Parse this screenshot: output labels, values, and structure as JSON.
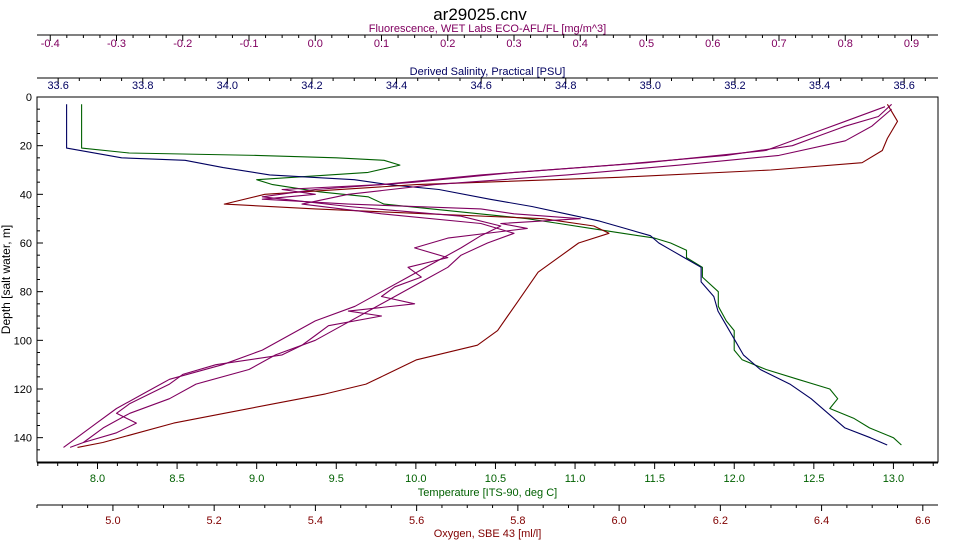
{
  "chart_data": {
    "type": "line",
    "title": "ar29025.cnv",
    "y_axis": {
      "label": "Depth [salt water, m]",
      "range": [
        0,
        150
      ],
      "inverted": true,
      "ticks": [
        0,
        20,
        40,
        60,
        80,
        100,
        120,
        140
      ]
    },
    "x_axes": [
      {
        "id": "fluorescence",
        "label": "Fluorescence, WET Labs ECO-AFL/FL [mg/m^3]",
        "position": "top-outer",
        "color": "#800060",
        "range": [
          -0.42,
          0.94
        ],
        "ticks": [
          -0.4,
          -0.3,
          -0.2,
          -0.1,
          0.0,
          0.1,
          0.2,
          0.3,
          0.4,
          0.5,
          0.6,
          0.7,
          0.8,
          0.9
        ],
        "tick_labels": [
          "-0.4",
          "-0.3",
          "-0.2",
          "-0.1",
          "0.0",
          "0.1",
          "0.2",
          "0.3",
          "0.4",
          "0.5",
          "0.6",
          "0.7",
          "0.8",
          "0.9"
        ]
      },
      {
        "id": "salinity",
        "label": "Derived Salinity, Practical [PSU]",
        "position": "top-inner",
        "color": "#000060",
        "range": [
          33.55,
          35.68
        ],
        "ticks": [
          33.6,
          33.8,
          34.0,
          34.2,
          34.4,
          34.6,
          34.8,
          35.0,
          35.2,
          35.4,
          35.6
        ],
        "tick_labels": [
          "33.6",
          "33.8",
          "34.0",
          "34.2",
          "34.4",
          "34.6",
          "34.8",
          "35.0",
          "35.2",
          "35.4",
          "35.6"
        ]
      },
      {
        "id": "temperature",
        "label": "Temperature [ITS-90, deg C]",
        "position": "bottom-inner",
        "color": "#006000",
        "range": [
          7.62,
          13.28
        ],
        "ticks": [
          8.0,
          8.5,
          9.0,
          9.5,
          10.0,
          10.5,
          11.0,
          11.5,
          12.0,
          12.5,
          13.0
        ],
        "tick_labels": [
          "8.0",
          "8.5",
          "9.0",
          "9.5",
          "10.0",
          "10.5",
          "11.0",
          "11.5",
          "12.0",
          "12.5",
          "13.0"
        ]
      },
      {
        "id": "oxygen",
        "label": "Oxygen, SBE 43 [ml/l]",
        "position": "bottom-outer",
        "color": "#800000",
        "range": [
          4.85,
          6.63
        ],
        "ticks": [
          5.0,
          5.2,
          5.4,
          5.6,
          5.8,
          6.0,
          6.2,
          6.4,
          6.6
        ],
        "tick_labels": [
          "5.0",
          "5.2",
          "5.4",
          "5.6",
          "5.8",
          "6.0",
          "6.2",
          "6.4",
          "6.6"
        ]
      }
    ],
    "grid": false,
    "legend": "none",
    "series": [
      {
        "axis": "temperature",
        "color": "#006000",
        "points": [
          [
            7.9,
            3
          ],
          [
            7.9,
            21
          ],
          [
            8.2,
            23
          ],
          [
            9.0,
            24
          ],
          [
            9.5,
            25
          ],
          [
            9.8,
            26
          ],
          [
            9.9,
            28
          ],
          [
            9.7,
            31
          ],
          [
            9.0,
            34
          ],
          [
            9.1,
            36
          ],
          [
            9.4,
            39
          ],
          [
            9.7,
            41
          ],
          [
            9.8,
            44
          ],
          [
            10.1,
            46
          ],
          [
            10.4,
            48
          ],
          [
            10.7,
            50
          ],
          [
            10.9,
            52
          ],
          [
            11.1,
            54
          ],
          [
            11.3,
            56
          ],
          [
            11.5,
            58
          ],
          [
            11.6,
            60
          ],
          [
            11.7,
            63
          ],
          [
            11.7,
            66
          ],
          [
            11.8,
            70
          ],
          [
            11.8,
            74
          ],
          [
            11.9,
            80
          ],
          [
            11.9,
            86
          ],
          [
            11.95,
            92
          ],
          [
            12.0,
            96
          ],
          [
            12.0,
            100
          ],
          [
            12.0,
            104
          ],
          [
            12.05,
            108
          ],
          [
            12.2,
            112
          ],
          [
            12.4,
            116
          ],
          [
            12.6,
            120
          ],
          [
            12.65,
            124
          ],
          [
            12.6,
            128
          ],
          [
            12.75,
            132
          ],
          [
            12.85,
            136
          ],
          [
            13.0,
            140
          ],
          [
            13.05,
            143
          ]
        ]
      },
      {
        "axis": "salinity",
        "color": "#000060",
        "points": [
          [
            33.62,
            3
          ],
          [
            33.62,
            21
          ],
          [
            33.75,
            25
          ],
          [
            33.9,
            26
          ],
          [
            33.99,
            29
          ],
          [
            34.1,
            32
          ],
          [
            34.3,
            34
          ],
          [
            34.38,
            36
          ],
          [
            34.5,
            38
          ],
          [
            34.62,
            42
          ],
          [
            34.72,
            45
          ],
          [
            34.8,
            48
          ],
          [
            34.88,
            51
          ],
          [
            34.94,
            54
          ],
          [
            35.0,
            57
          ],
          [
            35.02,
            60
          ],
          [
            35.05,
            63
          ],
          [
            35.08,
            66
          ],
          [
            35.12,
            70
          ],
          [
            35.12,
            76
          ],
          [
            35.15,
            82
          ],
          [
            35.16,
            88
          ],
          [
            35.18,
            94
          ],
          [
            35.2,
            100
          ],
          [
            35.22,
            106
          ],
          [
            35.26,
            112
          ],
          [
            35.33,
            118
          ],
          [
            35.38,
            124
          ],
          [
            35.42,
            130
          ],
          [
            35.46,
            136
          ],
          [
            35.52,
            140
          ],
          [
            35.56,
            143
          ]
        ]
      },
      {
        "axis": "oxygen",
        "color": "#800000",
        "points": [
          [
            6.53,
            3
          ],
          [
            6.55,
            10
          ],
          [
            6.53,
            17
          ],
          [
            6.52,
            22
          ],
          [
            6.48,
            27
          ],
          [
            6.3,
            30
          ],
          [
            6.0,
            33
          ],
          [
            5.6,
            36
          ],
          [
            5.3,
            40
          ],
          [
            5.22,
            44
          ],
          [
            5.4,
            46
          ],
          [
            5.62,
            48
          ],
          [
            5.85,
            50
          ],
          [
            5.95,
            53
          ],
          [
            5.98,
            56
          ],
          [
            5.92,
            60
          ],
          [
            5.88,
            66
          ],
          [
            5.84,
            72
          ],
          [
            5.82,
            78
          ],
          [
            5.8,
            84
          ],
          [
            5.78,
            90
          ],
          [
            5.76,
            96
          ],
          [
            5.72,
            102
          ],
          [
            5.6,
            108
          ],
          [
            5.54,
            114
          ],
          [
            5.5,
            118
          ],
          [
            5.42,
            122
          ],
          [
            5.32,
            126
          ],
          [
            5.22,
            130
          ],
          [
            5.12,
            134
          ],
          [
            5.05,
            138
          ],
          [
            4.98,
            142
          ],
          [
            4.93,
            144
          ]
        ]
      },
      {
        "axis": "fluorescence",
        "color": "#800060",
        "points": [
          [
            0.87,
            3
          ],
          [
            0.85,
            8
          ],
          [
            0.8,
            12
          ],
          [
            0.76,
            16
          ],
          [
            0.72,
            20
          ],
          [
            0.62,
            24
          ],
          [
            0.45,
            28
          ],
          [
            0.25,
            32
          ],
          [
            0.1,
            36
          ],
          [
            -0.05,
            38
          ],
          [
            0.0,
            40
          ],
          [
            -0.08,
            42
          ],
          [
            0.05,
            44
          ],
          [
            0.25,
            46
          ],
          [
            0.3,
            48
          ],
          [
            0.4,
            50
          ],
          [
            0.28,
            52
          ],
          [
            0.32,
            54
          ],
          [
            0.2,
            58
          ],
          [
            0.15,
            62
          ],
          [
            0.2,
            66
          ],
          [
            0.14,
            70
          ],
          [
            0.16,
            74
          ],
          [
            0.12,
            78
          ],
          [
            0.1,
            82
          ],
          [
            0.15,
            85
          ],
          [
            0.05,
            88
          ],
          [
            0.1,
            90
          ],
          [
            0.02,
            94
          ],
          [
            0.0,
            98
          ],
          [
            -0.02,
            102
          ],
          [
            -0.05,
            106
          ],
          [
            -0.15,
            110
          ],
          [
            -0.2,
            114
          ],
          [
            -0.22,
            118
          ],
          [
            -0.25,
            122
          ],
          [
            -0.28,
            126
          ],
          [
            -0.3,
            130
          ],
          [
            -0.27,
            134
          ],
          [
            -0.3,
            138
          ],
          [
            -0.35,
            142
          ],
          [
            -0.37,
            144
          ]
        ]
      },
      {
        "axis": "fluorescence",
        "color": "#800060",
        "points": [
          [
            0.86,
            4
          ],
          [
            0.8,
            10
          ],
          [
            0.74,
            16
          ],
          [
            0.68,
            22
          ],
          [
            0.5,
            27
          ],
          [
            0.3,
            31
          ],
          [
            0.15,
            35
          ],
          [
            0.0,
            38
          ],
          [
            -0.08,
            41
          ],
          [
            0.05,
            45
          ],
          [
            0.22,
            49
          ],
          [
            0.28,
            53
          ],
          [
            0.25,
            57
          ],
          [
            0.22,
            62
          ],
          [
            0.18,
            68
          ],
          [
            0.14,
            74
          ],
          [
            0.1,
            80
          ],
          [
            0.06,
            86
          ],
          [
            0.0,
            92
          ],
          [
            -0.04,
            98
          ],
          [
            -0.08,
            104
          ],
          [
            -0.14,
            110
          ],
          [
            -0.22,
            116
          ],
          [
            -0.26,
            122
          ],
          [
            -0.3,
            128
          ],
          [
            -0.33,
            134
          ],
          [
            -0.36,
            140
          ],
          [
            -0.38,
            144
          ]
        ]
      },
      {
        "axis": "fluorescence",
        "color": "#800060",
        "points": [
          [
            0.87,
            5
          ],
          [
            0.84,
            12
          ],
          [
            0.8,
            18
          ],
          [
            0.7,
            24
          ],
          [
            0.55,
            28
          ],
          [
            0.38,
            32
          ],
          [
            0.18,
            36
          ],
          [
            0.05,
            40
          ],
          [
            -0.02,
            44
          ],
          [
            0.1,
            48
          ],
          [
            0.25,
            52
          ],
          [
            0.3,
            56
          ],
          [
            0.26,
            60
          ],
          [
            0.22,
            65
          ],
          [
            0.2,
            70
          ],
          [
            0.16,
            76
          ],
          [
            0.12,
            82
          ],
          [
            0.08,
            88
          ],
          [
            0.04,
            94
          ],
          [
            0.0,
            100
          ],
          [
            -0.06,
            106
          ],
          [
            -0.1,
            112
          ],
          [
            -0.18,
            118
          ],
          [
            -0.22,
            124
          ],
          [
            -0.28,
            130
          ],
          [
            -0.32,
            136
          ],
          [
            -0.35,
            142
          ]
        ]
      }
    ]
  }
}
